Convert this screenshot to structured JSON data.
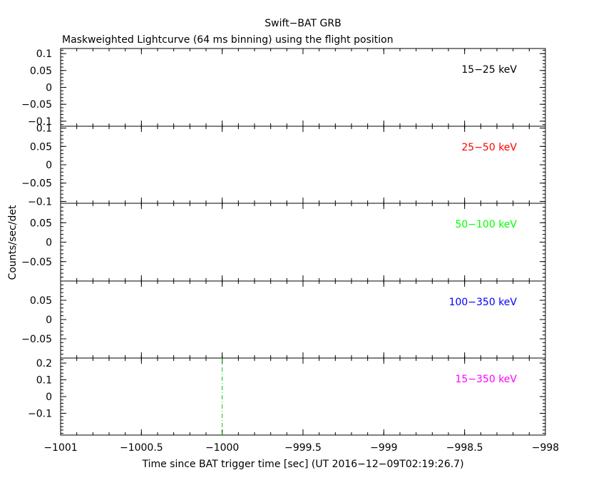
{
  "chart_data": {
    "type": "line",
    "title": "Swift−BAT GRB",
    "subtitle": "Maskweighted Lightcurve (64 ms binning) using the flight position",
    "xlabel": "Time since BAT trigger time [sec] (UT 2016−12−09T02:19:26.7)",
    "ylabel": "Counts/sec/det",
    "xlim": [
      -1001,
      -998
    ],
    "xticks": [
      -1001,
      -1000.5,
      -1000,
      -999.5,
      -999,
      -998.5,
      -998
    ],
    "xtick_labels": [
      "−1001",
      "−1000.5",
      "−1000",
      "−999.5",
      "−999",
      "−998.5",
      "−998"
    ],
    "marker_x": -1000,
    "marker_color": "#00cc00",
    "panels": [
      {
        "label": "15−25 keV",
        "color": "#000000",
        "ylim": [
          -0.115,
          0.115
        ],
        "yticks": [
          0.1,
          0.05,
          0,
          -0.05,
          -0.1
        ],
        "ytick_labels": [
          "0.1",
          "0.05",
          "0",
          "−0.05",
          "−0.1"
        ]
      },
      {
        "label": "25−50 keV",
        "color": "#ff0000",
        "ylim": [
          -0.105,
          0.105
        ],
        "yticks": [
          0.1,
          0.05,
          0,
          -0.05,
          -0.1
        ],
        "ytick_labels": [
          "0.1",
          "0.05",
          "0",
          "−0.05",
          "−0.1"
        ]
      },
      {
        "label": "50−100 keV",
        "color": "#00ff00",
        "ylim": [
          -0.1,
          0.1
        ],
        "yticks": [
          0.05,
          0,
          -0.05
        ],
        "ytick_labels": [
          "0.05",
          "0",
          "−0.05"
        ]
      },
      {
        "label": "100−350 keV",
        "color": "#0000ff",
        "ylim": [
          -0.1,
          0.1
        ],
        "yticks": [
          0.05,
          0,
          -0.05
        ],
        "ytick_labels": [
          "0.05",
          "0",
          "−0.05"
        ]
      },
      {
        "label": "15−350 keV",
        "color": "#ff00ff",
        "ylim": [
          -0.23,
          0.23
        ],
        "yticks": [
          0.2,
          0.1,
          0,
          -0.1
        ],
        "ytick_labels": [
          "0.2",
          "0.1",
          "0",
          "−0.1"
        ]
      }
    ]
  }
}
